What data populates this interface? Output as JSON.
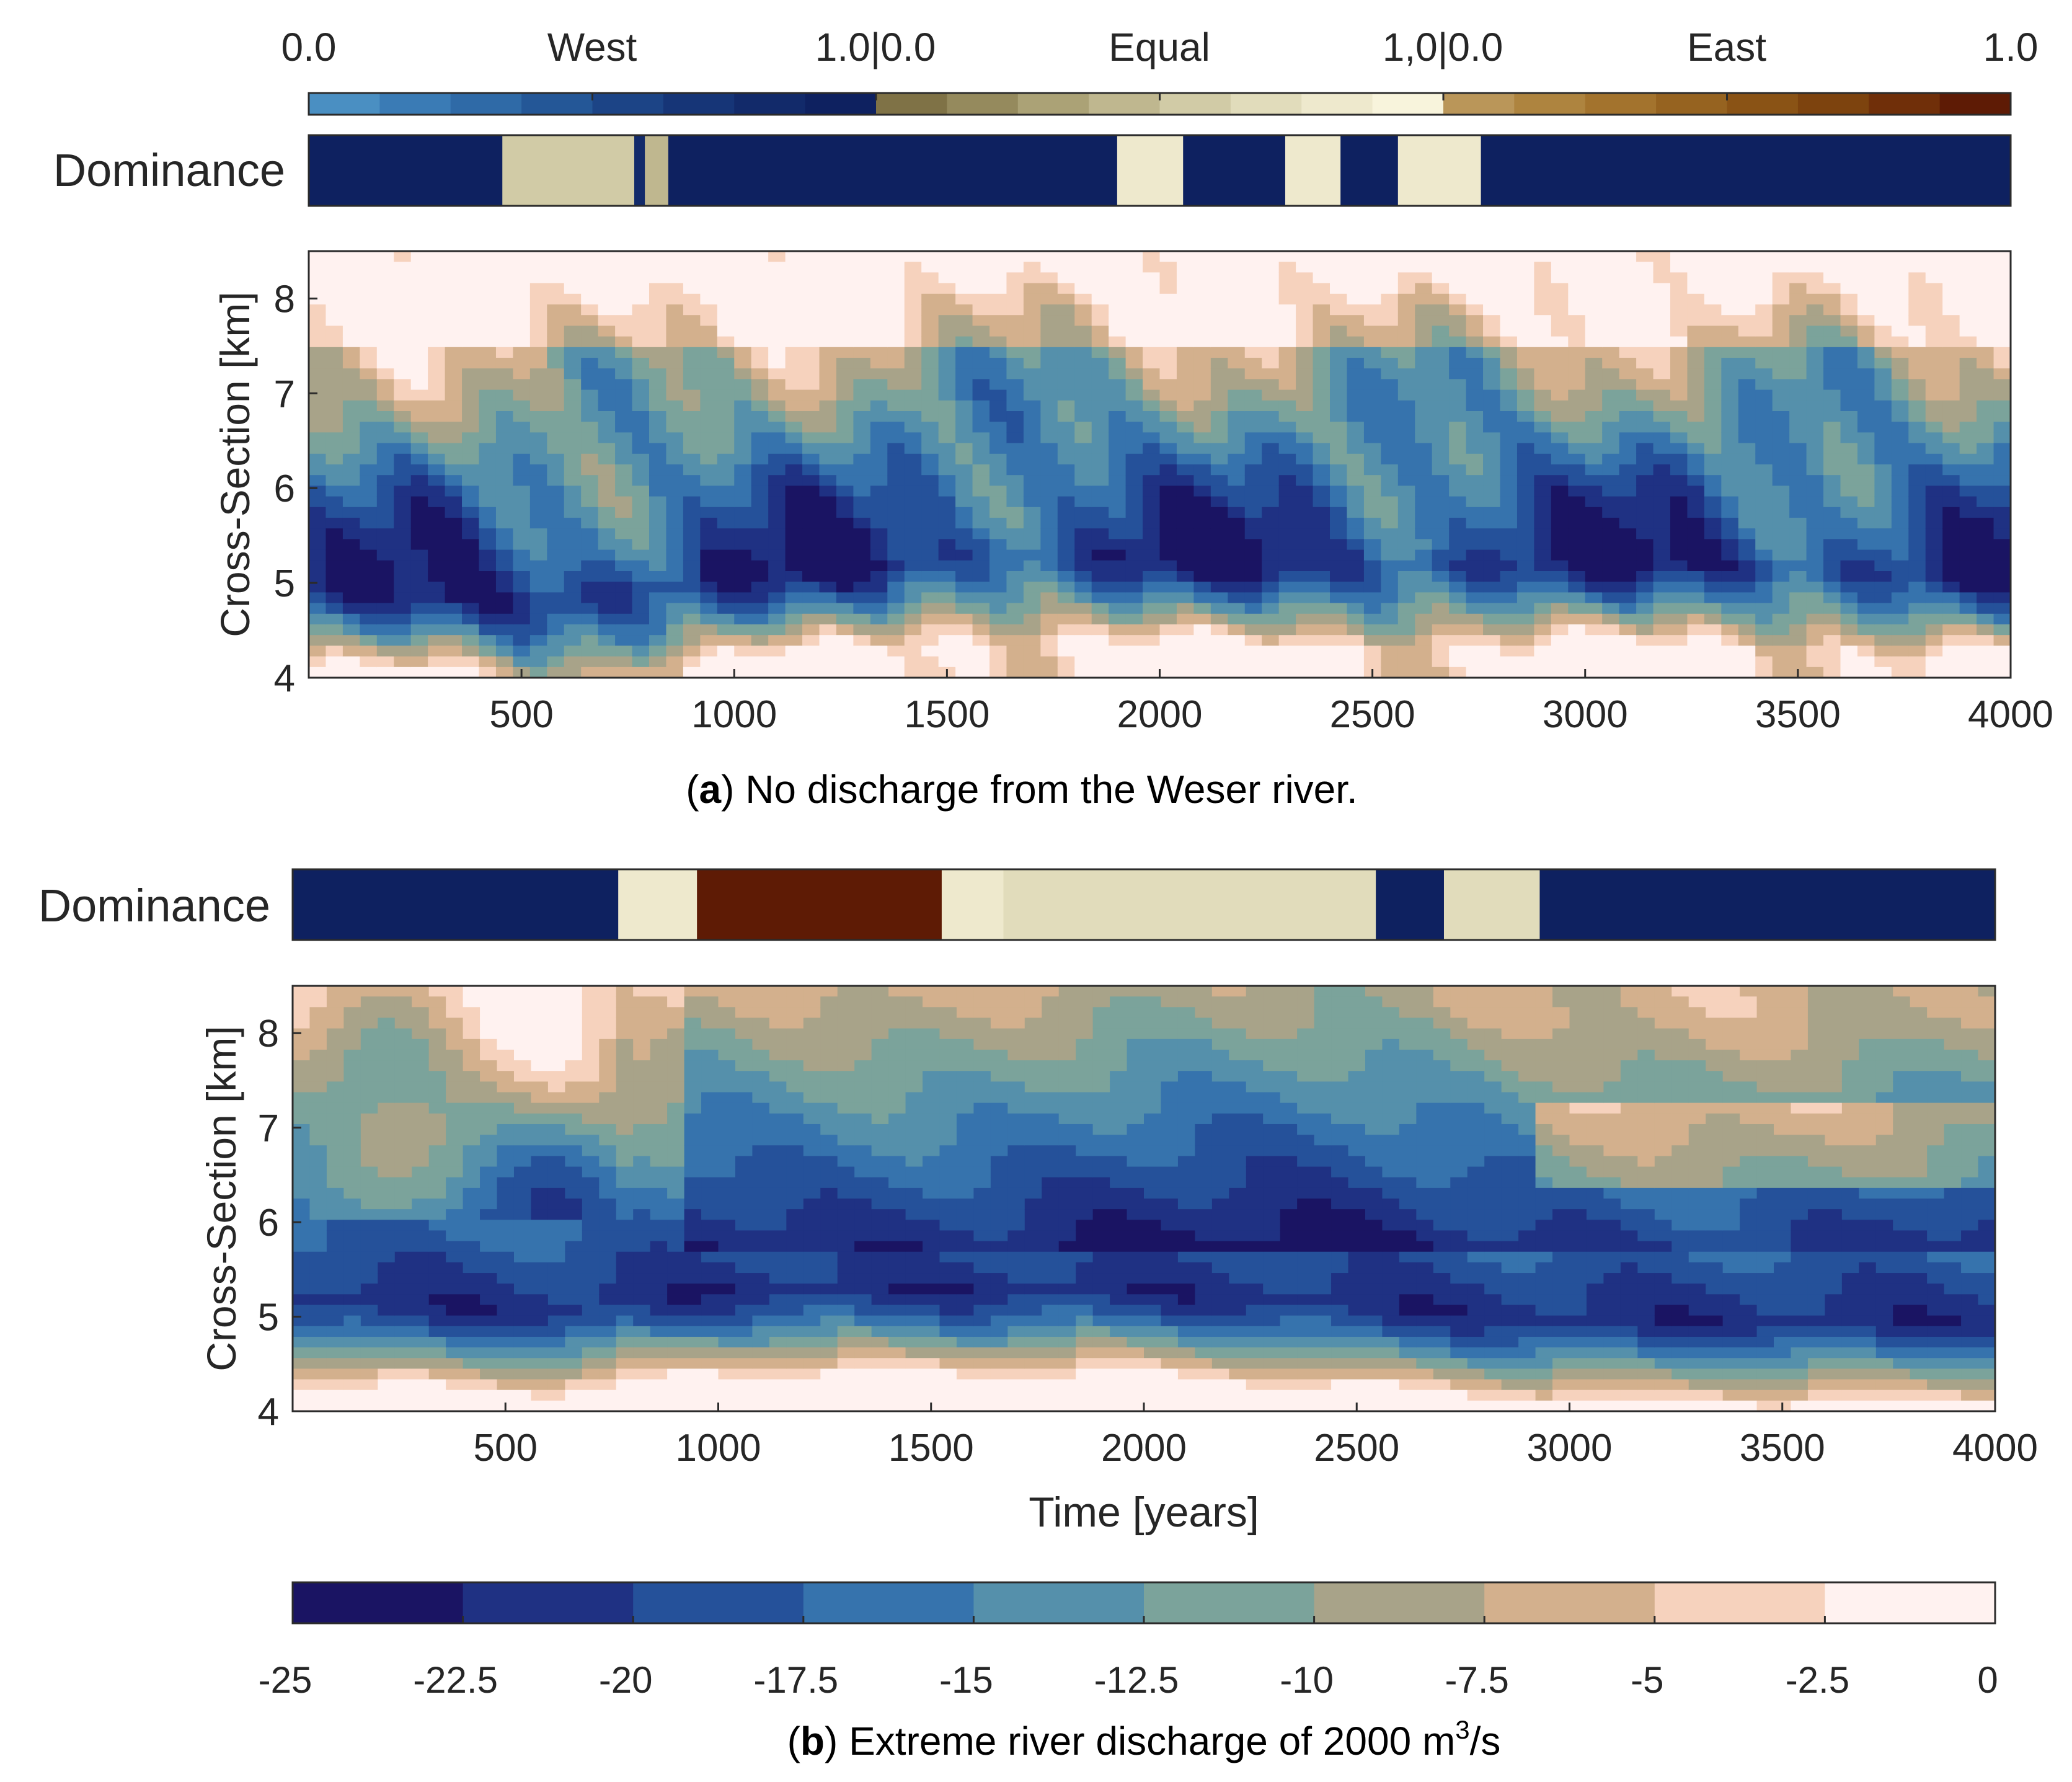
{
  "colors": {
    "dominance_west": [
      "#4a8fc2",
      "#3a7bb5",
      "#2f6aa7",
      "#245797",
      "#1c4486",
      "#163577",
      "#122a6a",
      "#0e2160"
    ],
    "dominance_equal": [
      "#7f7246",
      "#958a5d",
      "#aba276",
      "#bfb78f",
      "#d1cba6",
      "#e1dcbb",
      "#eee9cd",
      "#f8f4dc"
    ],
    "dominance_east": [
      "#ba9659",
      "#ae843f",
      "#a3732d",
      "#966320",
      "#8a5315",
      "#7d430e",
      "#702f09",
      "#5e1b05"
    ],
    "contour_palette": [
      "#1a1463",
      "#1f3183",
      "#25519a",
      "#3673ad",
      "#5590ab",
      "#7ba39b",
      "#a8a389",
      "#d3b08d",
      "#f6d2bd",
      "#fff2f0"
    ]
  },
  "dominance_legend": {
    "ticks": [
      "0.0",
      "West",
      "1.0|0.0",
      "Equal",
      "1,0|0.0",
      "East",
      "1.0"
    ]
  },
  "panel_a": {
    "dominance_label": "Dominance",
    "ylabel": "Cross-Section [km]",
    "caption_letter": "a",
    "caption_text": "No discharge from the Weser river."
  },
  "panel_b": {
    "dominance_label": "Dominance",
    "ylabel": "Cross-Section [km]",
    "xlabel": "Time [years]",
    "caption_letter": "b",
    "caption_text": "Extreme river discharge of 2000 m",
    "caption_sup": "3",
    "caption_unit": "/s"
  },
  "chart_data": [
    {
      "type": "heatmap",
      "title": "(a) No discharge from the Weser river.",
      "xlabel": "",
      "ylabel": "Cross-Section [km]",
      "xlim": [
        0,
        4000
      ],
      "ylim": [
        4,
        8.5
      ],
      "xticks": [
        500,
        1000,
        1500,
        2000,
        2500,
        3000,
        3500,
        4000
      ],
      "yticks": [
        4,
        5,
        6,
        7,
        8
      ],
      "channel_center_km": [
        [
          0,
          5.0
        ],
        [
          500,
          4.8
        ],
        [
          1000,
          5.1
        ],
        [
          1500,
          5.3
        ],
        [
          2000,
          5.3
        ],
        [
          2500,
          5.2
        ],
        [
          3000,
          5.3
        ],
        [
          3500,
          5.2
        ],
        [
          4000,
          5.1
        ]
      ],
      "dominance_segments": [
        {
          "from": 0,
          "to": 455,
          "class": "west",
          "level": 0.93
        },
        {
          "from": 455,
          "to": 765,
          "class": "equal",
          "level": 0.55
        },
        {
          "from": 765,
          "to": 790,
          "class": "west",
          "level": 0.85
        },
        {
          "from": 790,
          "to": 845,
          "class": "equal",
          "level": 0.45
        },
        {
          "from": 845,
          "to": 1900,
          "class": "west",
          "level": 0.95
        },
        {
          "from": 1900,
          "to": 2055,
          "class": "equal",
          "level": 0.85
        },
        {
          "from": 2055,
          "to": 2295,
          "class": "west",
          "level": 0.95
        },
        {
          "from": 2295,
          "to": 2425,
          "class": "equal",
          "level": 0.85
        },
        {
          "from": 2425,
          "to": 2560,
          "class": "west",
          "level": 0.97
        },
        {
          "from": 2560,
          "to": 2755,
          "class": "equal",
          "level": 0.85
        },
        {
          "from": 2755,
          "to": 4000,
          "class": "west",
          "level": 0.94
        }
      ]
    },
    {
      "type": "heatmap",
      "title": "(b) Extreme river discharge of 2000 m3/s",
      "xlabel": "Time [years]",
      "ylabel": "Cross-Section [km]",
      "xlim": [
        0,
        4000
      ],
      "ylim": [
        4,
        8.5
      ],
      "xticks": [
        500,
        1000,
        1500,
        2000,
        2500,
        3000,
        3500,
        4000
      ],
      "yticks": [
        4,
        5,
        6,
        7,
        8
      ],
      "channel_center_km": [
        [
          0,
          5.2
        ],
        [
          600,
          5.1
        ],
        [
          1000,
          5.3
        ],
        [
          2000,
          5.3
        ],
        [
          3000,
          5.0
        ],
        [
          4000,
          5.0
        ]
      ],
      "dominance_segments": [
        {
          "from": 0,
          "to": 765,
          "class": "west",
          "level": 0.93
        },
        {
          "from": 765,
          "to": 950,
          "class": "equal",
          "level": 0.8
        },
        {
          "from": 950,
          "to": 1525,
          "class": "east",
          "level": 0.95
        },
        {
          "from": 1525,
          "to": 1670,
          "class": "equal",
          "level": 0.82
        },
        {
          "from": 1670,
          "to": 2545,
          "class": "equal",
          "level": 0.7
        },
        {
          "from": 2545,
          "to": 2705,
          "class": "west",
          "level": 0.97
        },
        {
          "from": 2705,
          "to": 2930,
          "class": "equal",
          "level": 0.72
        },
        {
          "from": 2930,
          "to": 4000,
          "class": "west",
          "level": 0.93
        }
      ],
      "colorbar": {
        "levels": [
          -25,
          -22.5,
          -20,
          -17.5,
          -15,
          -12.5,
          -10,
          -7.5,
          -5,
          -2.5,
          0
        ],
        "tick_labels": [
          "-25",
          "-22.5",
          "-20",
          "-17.5",
          "-15",
          "-12.5",
          "-10",
          "-7.5",
          "-5",
          "-2.5",
          "0"
        ]
      }
    }
  ]
}
